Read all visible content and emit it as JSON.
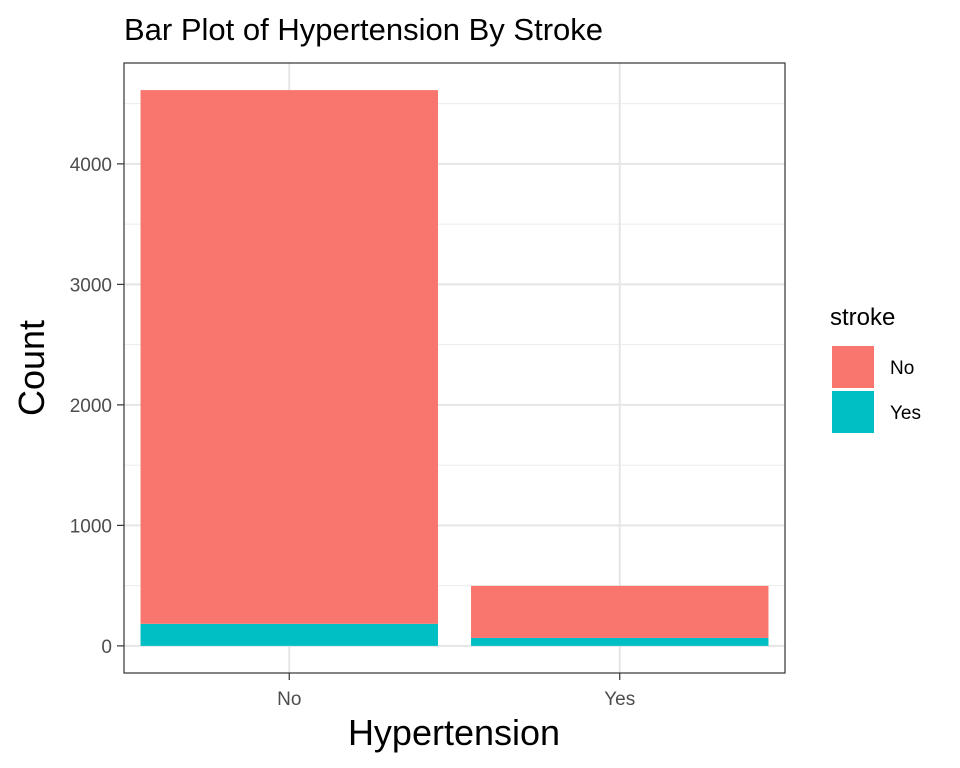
{
  "chart_data": {
    "type": "bar",
    "stacked": true,
    "title": "Bar Plot of Hypertension By Stroke",
    "xlabel": "Hypertension",
    "ylabel": "Count",
    "categories": [
      "No",
      "Yes"
    ],
    "series": [
      {
        "name": "No",
        "values": [
          4429,
          432
        ],
        "color": "#F8766D"
      },
      {
        "name": "Yes",
        "values": [
          183,
          66
        ],
        "color": "#00BFC4"
      }
    ],
    "ylim": [
      -225,
      4837
    ],
    "yticks": [
      0,
      1000,
      2000,
      3000,
      4000
    ],
    "grid": true,
    "legend": {
      "title": "stroke",
      "position": "right"
    }
  }
}
